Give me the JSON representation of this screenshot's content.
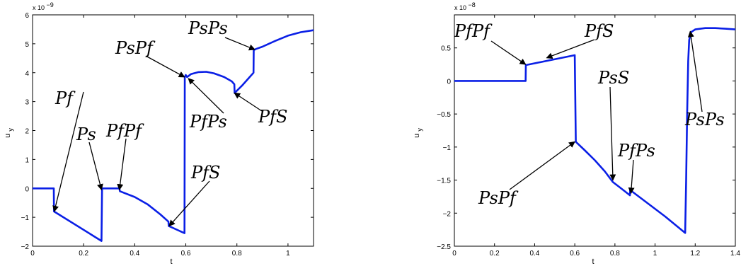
{
  "chart_data": [
    {
      "type": "line",
      "xlabel": "t",
      "ylabel": "u",
      "ylabel_subscript": "y",
      "y_exponent_base": "x 10",
      "y_exponent_power": "−9",
      "xlim": [
        0,
        1.1
      ],
      "ylim": [
        -2,
        6
      ],
      "xticks": [
        "0",
        "0.2",
        "0.4",
        "0.6",
        "0.8",
        "1"
      ],
      "xtick_values": [
        0,
        0.2,
        0.4,
        0.6,
        0.8,
        1.0
      ],
      "yticks": [
        "−2",
        "−1",
        "0",
        "1",
        "2",
        "3",
        "4",
        "5",
        "6"
      ],
      "ytick_values": [
        -2,
        -1,
        0,
        1,
        2,
        3,
        4,
        5,
        6
      ],
      "grid": false,
      "color": "#0a1fe6",
      "points": [
        [
          0.0,
          0.0
        ],
        [
          0.083,
          0.0
        ],
        [
          0.084,
          -0.8
        ],
        [
          0.27,
          -1.82
        ],
        [
          0.272,
          0.0
        ],
        [
          0.34,
          0.0
        ],
        [
          0.342,
          -0.1
        ],
        [
          0.4,
          -0.3
        ],
        [
          0.45,
          -0.55
        ],
        [
          0.5,
          -0.9
        ],
        [
          0.532,
          -1.15
        ],
        [
          0.533,
          -1.3
        ],
        [
          0.595,
          -1.55
        ],
        [
          0.596,
          3.85
        ],
        [
          0.6,
          3.92
        ],
        [
          0.605,
          3.85
        ],
        [
          0.62,
          3.95
        ],
        [
          0.65,
          4.02
        ],
        [
          0.68,
          4.03
        ],
        [
          0.71,
          3.98
        ],
        [
          0.75,
          3.85
        ],
        [
          0.78,
          3.7
        ],
        [
          0.79,
          3.6
        ],
        [
          0.791,
          3.3
        ],
        [
          0.82,
          3.55
        ],
        [
          0.85,
          3.85
        ],
        [
          0.865,
          4.0
        ],
        [
          0.866,
          4.78
        ],
        [
          0.875,
          4.82
        ],
        [
          0.9,
          4.9
        ],
        [
          0.95,
          5.1
        ],
        [
          1.0,
          5.28
        ],
        [
          1.05,
          5.4
        ],
        [
          1.1,
          5.47
        ]
      ],
      "annotations": [
        {
          "label": "Pf",
          "x": 0.085,
          "y": -0.8
        },
        {
          "label": "Ps",
          "x": 0.27,
          "y": -0.05
        },
        {
          "label": "PfPf",
          "x": 0.34,
          "y": -0.05
        },
        {
          "label": "PfS",
          "x": 0.535,
          "y": -1.3
        },
        {
          "label": "PsPf",
          "x": 0.595,
          "y": 3.85
        },
        {
          "label": "PfPs",
          "x": 0.61,
          "y": 3.8
        },
        {
          "label": "PfS",
          "x": 0.79,
          "y": 3.3
        },
        {
          "label": "PsPs",
          "x": 0.87,
          "y": 4.8
        }
      ]
    },
    {
      "type": "line",
      "xlabel": "t",
      "ylabel": "u",
      "ylabel_subscript": "y",
      "y_exponent_base": "x 10",
      "y_exponent_power": "−8",
      "xlim": [
        0,
        1.4
      ],
      "ylim": [
        -2.5,
        1.0
      ],
      "xticks": [
        "0",
        "0.2",
        "0.4",
        "0.6",
        "0.8",
        "1",
        "1.2",
        "1.4"
      ],
      "xtick_values": [
        0,
        0.2,
        0.4,
        0.6,
        0.8,
        1.0,
        1.2,
        1.4
      ],
      "yticks": [
        "−2.5",
        "−2",
        "−1.5",
        "−1",
        "−0.5",
        "0",
        "0.5"
      ],
      "ytick_values": [
        -2.5,
        -2,
        -1.5,
        -1,
        -0.5,
        0,
        0.5
      ],
      "grid": false,
      "color": "#0a1fe6",
      "points": [
        [
          0.0,
          0.0
        ],
        [
          0.355,
          0.0
        ],
        [
          0.356,
          0.24
        ],
        [
          0.6,
          0.39
        ],
        [
          0.605,
          -0.92
        ],
        [
          0.65,
          -1.05
        ],
        [
          0.7,
          -1.2
        ],
        [
          0.75,
          -1.37
        ],
        [
          0.79,
          -1.53
        ],
        [
          0.82,
          -1.6
        ],
        [
          0.85,
          -1.67
        ],
        [
          0.875,
          -1.73
        ],
        [
          0.876,
          -1.65
        ],
        [
          0.95,
          -1.82
        ],
        [
          1.05,
          -2.05
        ],
        [
          1.15,
          -2.3
        ],
        [
          1.155,
          -1.5
        ],
        [
          1.16,
          -0.5
        ],
        [
          1.165,
          0.3
        ],
        [
          1.17,
          0.62
        ],
        [
          1.18,
          0.74
        ],
        [
          1.2,
          0.78
        ],
        [
          1.25,
          0.8
        ],
        [
          1.3,
          0.8
        ],
        [
          1.35,
          0.79
        ],
        [
          1.4,
          0.78
        ]
      ],
      "annotations": [
        {
          "label": "PfPf",
          "x": 0.355,
          "y": 0.25
        },
        {
          "label": "PfS",
          "x": 0.46,
          "y": 0.35
        },
        {
          "label": "PsS",
          "x": 0.79,
          "y": -1.5
        },
        {
          "label": "PfPs",
          "x": 0.88,
          "y": -1.7
        },
        {
          "label": "PsPf",
          "x": 0.6,
          "y": -0.92
        },
        {
          "label": "PsPs",
          "x": 1.175,
          "y": 0.75
        }
      ]
    }
  ]
}
